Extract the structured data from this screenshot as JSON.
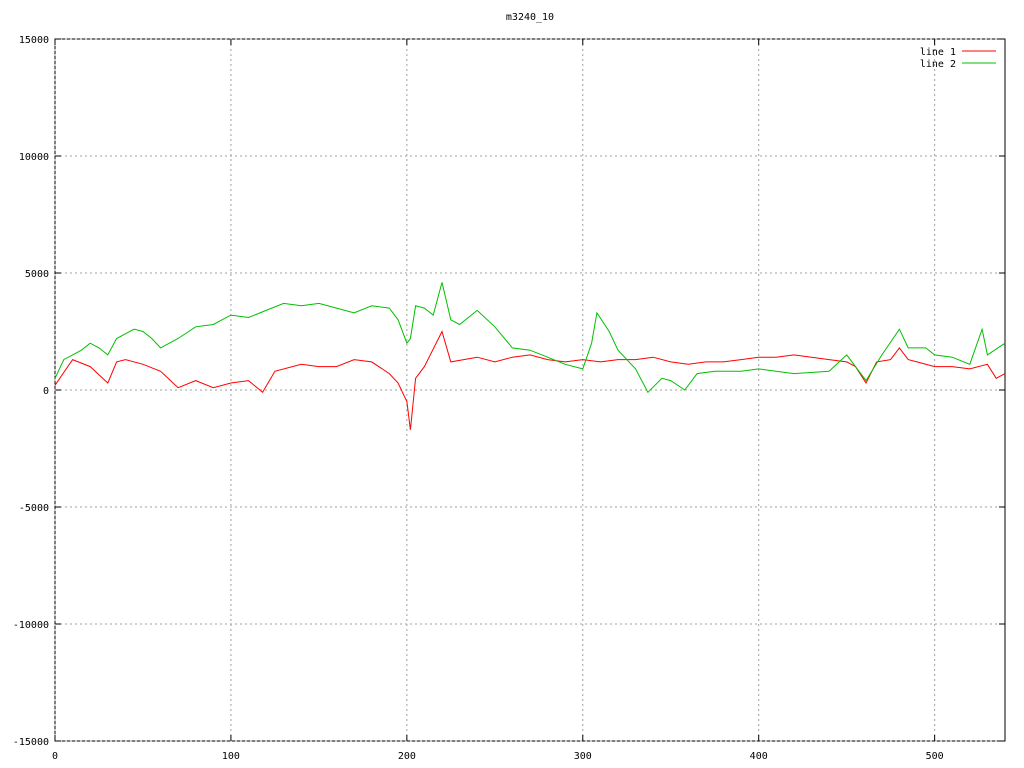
{
  "chart_data": {
    "type": "line",
    "title": "m3240_10",
    "xlim": [
      0,
      540
    ],
    "ylim": [
      -15000,
      15000
    ],
    "xticks": [
      0,
      100,
      200,
      300,
      400,
      500
    ],
    "yticks": [
      -15000,
      -10000,
      -5000,
      0,
      5000,
      10000,
      15000
    ],
    "grid": true,
    "legend": "top-right",
    "series": [
      {
        "name": "line 1",
        "color": "#ff0000",
        "x": [
          0,
          10,
          20,
          30,
          35,
          40,
          50,
          60,
          70,
          80,
          90,
          100,
          110,
          118,
          125,
          140,
          150,
          160,
          170,
          180,
          190,
          195,
          200,
          202,
          205,
          210,
          220,
          225,
          240,
          250,
          260,
          270,
          280,
          290,
          300,
          310,
          320,
          330,
          340,
          350,
          360,
          370,
          380,
          390,
          400,
          410,
          420,
          430,
          440,
          450,
          455,
          461,
          467,
          475,
          480,
          485,
          490,
          500,
          510,
          520,
          530,
          535,
          540
        ],
        "values": [
          200,
          1300,
          1000,
          300,
          1200,
          1300,
          1100,
          800,
          100,
          400,
          100,
          300,
          400,
          -100,
          800,
          1100,
          1000,
          1000,
          1300,
          1200,
          700,
          300,
          -500,
          -1700,
          500,
          1000,
          2500,
          1200,
          1400,
          1200,
          1400,
          1500,
          1300,
          1200,
          1300,
          1200,
          1300,
          1300,
          1400,
          1200,
          1100,
          1200,
          1200,
          1300,
          1400,
          1400,
          1500,
          1400,
          1300,
          1200,
          1000,
          300,
          1200,
          1300,
          1800,
          1300,
          1200,
          1000,
          1000,
          900,
          1100,
          500,
          700
        ]
      },
      {
        "name": "line 2",
        "color": "#00c000",
        "x": [
          0,
          5,
          10,
          15,
          20,
          25,
          30,
          35,
          40,
          45,
          50,
          55,
          60,
          70,
          80,
          90,
          100,
          110,
          120,
          130,
          140,
          150,
          160,
          170,
          180,
          190,
          195,
          200,
          202,
          205,
          210,
          215,
          220,
          225,
          230,
          240,
          250,
          260,
          270,
          280,
          290,
          300,
          305,
          308,
          315,
          320,
          330,
          337,
          345,
          350,
          358,
          365,
          375,
          390,
          400,
          420,
          440,
          450,
          461,
          470,
          480,
          485,
          495,
          500,
          510,
          520,
          527,
          530,
          540
        ],
        "values": [
          500,
          1300,
          1500,
          1700,
          2000,
          1800,
          1500,
          2200,
          2400,
          2600,
          2500,
          2200,
          1800,
          2200,
          2700,
          2800,
          3200,
          3100,
          3400,
          3700,
          3600,
          3700,
          3500,
          3300,
          3600,
          3500,
          3000,
          2000,
          2200,
          3600,
          3500,
          3200,
          4600,
          3000,
          2800,
          3400,
          2700,
          1800,
          1700,
          1400,
          1100,
          900,
          2000,
          3300,
          2500,
          1700,
          900,
          -100,
          500,
          400,
          0,
          700,
          800,
          800,
          900,
          700,
          800,
          1500,
          400,
          1500,
          2600,
          1800,
          1800,
          1500,
          1400,
          1100,
          2600,
          1500,
          2000
        ]
      }
    ]
  }
}
